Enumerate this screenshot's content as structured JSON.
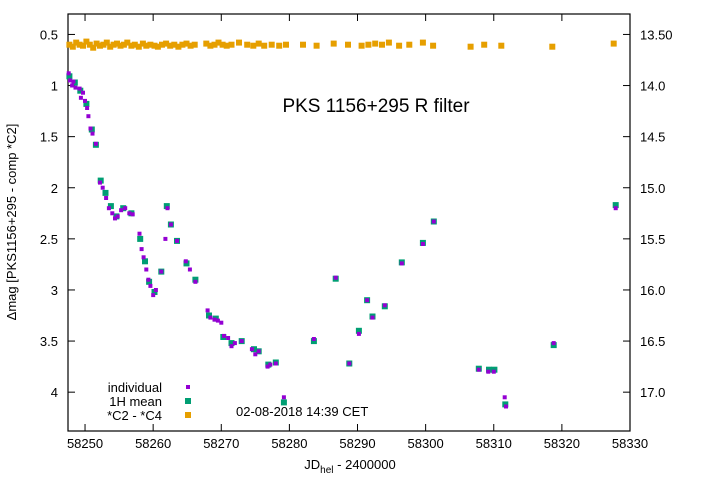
{
  "chart_data": {
    "type": "scatter",
    "title": "PKS 1156+295   R filter",
    "annotation": "02-08-2018  14:39 CET",
    "xlabel_main": "JD",
    "xlabel_sub": "hel",
    "xlabel_rest": " - 2400000",
    "ylabel": "Δmag [PKS1156+295 - comp *C2]",
    "x_range": [
      58247.5,
      58330
    ],
    "y_left_range": [
      0.3,
      4.38
    ],
    "y_left_inverted": true,
    "y_right_offset": 13.0,
    "x_ticks": [
      58250,
      58260,
      58270,
      58280,
      58290,
      58300,
      58310,
      58320,
      58330
    ],
    "x_tick_labels": [
      "58250",
      "58260",
      "58270",
      "58280",
      "58290",
      "58300",
      "58310",
      "58320",
      "58330"
    ],
    "y_left_ticks": [
      0.5,
      1,
      1.5,
      2,
      2.5,
      3,
      3.5,
      4
    ],
    "y_left_tick_labels": [
      "0.5",
      "1",
      "1.5",
      "2",
      "2.5",
      "3",
      "3.5",
      "4"
    ],
    "y_right_ticks": [
      13.5,
      14.0,
      14.5,
      15.0,
      15.5,
      16.0,
      16.5,
      17.0
    ],
    "y_right_tick_labels": [
      "13.50",
      "14.0",
      "14.5",
      "15.0",
      "15.5",
      "16.0",
      "16.5",
      "17.0"
    ],
    "grid": false,
    "legend_position": "bottom-left",
    "series": [
      {
        "name": "individual",
        "color": "#9400d3",
        "points": [
          [
            58247.6,
            0.88
          ],
          [
            58247.8,
            0.95
          ],
          [
            58248.1,
            1.0
          ],
          [
            58248.3,
            0.96
          ],
          [
            58248.6,
            1.02
          ],
          [
            58249.2,
            1.03
          ],
          [
            58249.4,
            1.12
          ],
          [
            58249.7,
            1.07
          ],
          [
            58250.0,
            1.15
          ],
          [
            58250.3,
            1.22
          ],
          [
            58250.5,
            1.3
          ],
          [
            58250.8,
            1.42
          ],
          [
            58251.1,
            1.47
          ],
          [
            58251.6,
            1.57
          ],
          [
            58252.2,
            1.95
          ],
          [
            58252.6,
            2.0
          ],
          [
            58253.1,
            2.1
          ],
          [
            58253.5,
            2.2
          ],
          [
            58254.0,
            2.25
          ],
          [
            58254.4,
            2.3
          ],
          [
            58254.8,
            2.28
          ],
          [
            58255.3,
            2.22
          ],
          [
            58255.9,
            2.2
          ],
          [
            58256.5,
            2.25
          ],
          [
            58257.0,
            2.26
          ],
          [
            58258.0,
            2.45
          ],
          [
            58258.3,
            2.6
          ],
          [
            58258.6,
            2.68
          ],
          [
            58259.0,
            2.8
          ],
          [
            58259.3,
            2.9
          ],
          [
            58259.6,
            2.96
          ],
          [
            58260.0,
            3.05
          ],
          [
            58260.4,
            3.0
          ],
          [
            58261.2,
            2.82
          ],
          [
            58261.8,
            2.5
          ],
          [
            58262.1,
            2.2
          ],
          [
            58262.6,
            2.36
          ],
          [
            58263.5,
            2.52
          ],
          [
            58264.8,
            2.72
          ],
          [
            58265.4,
            2.8
          ],
          [
            58266.2,
            2.92
          ],
          [
            58268.0,
            3.2
          ],
          [
            58268.4,
            3.27
          ],
          [
            58269.0,
            3.29
          ],
          [
            58269.5,
            3.3
          ],
          [
            58270.0,
            3.32
          ],
          [
            58270.4,
            3.45
          ],
          [
            58271.0,
            3.47
          ],
          [
            58271.5,
            3.55
          ],
          [
            58272.0,
            3.52
          ],
          [
            58273.0,
            3.5
          ],
          [
            58274.5,
            3.58
          ],
          [
            58275.0,
            3.63
          ],
          [
            58275.5,
            3.6
          ],
          [
            58276.8,
            3.75
          ],
          [
            58277.2,
            3.73
          ],
          [
            58278.0,
            3.72
          ],
          [
            58279.2,
            4.05
          ],
          [
            58283.6,
            3.48
          ],
          [
            58286.8,
            2.88
          ],
          [
            58288.8,
            3.72
          ],
          [
            58290.2,
            3.43
          ],
          [
            58291.4,
            3.1
          ],
          [
            58292.2,
            3.27
          ],
          [
            58294.0,
            3.15
          ],
          [
            58296.5,
            2.74
          ],
          [
            58299.6,
            2.55
          ],
          [
            58301.2,
            2.33
          ],
          [
            58307.8,
            3.78
          ],
          [
            58309.2,
            3.8
          ],
          [
            58310.0,
            3.8
          ],
          [
            58311.6,
            4.05
          ],
          [
            58311.8,
            4.14
          ],
          [
            58318.8,
            3.52
          ],
          [
            58327.9,
            2.2
          ]
        ]
      },
      {
        "name": "1H mean",
        "color": "#009e73",
        "points": [
          [
            58247.7,
            0.91
          ],
          [
            58248.5,
            0.97
          ],
          [
            58249.3,
            1.05
          ],
          [
            58250.2,
            1.18
          ],
          [
            58251.0,
            1.43
          ],
          [
            58251.6,
            1.58
          ],
          [
            58252.3,
            1.93
          ],
          [
            58253.0,
            2.05
          ],
          [
            58253.8,
            2.18
          ],
          [
            58254.6,
            2.28
          ],
          [
            58255.6,
            2.2
          ],
          [
            58256.8,
            2.25
          ],
          [
            58258.1,
            2.5
          ],
          [
            58258.8,
            2.72
          ],
          [
            58259.4,
            2.92
          ],
          [
            58260.2,
            3.02
          ],
          [
            58261.2,
            2.82
          ],
          [
            58262.0,
            2.18
          ],
          [
            58262.6,
            2.36
          ],
          [
            58263.5,
            2.52
          ],
          [
            58264.9,
            2.74
          ],
          [
            58266.2,
            2.9
          ],
          [
            58268.2,
            3.25
          ],
          [
            58269.2,
            3.28
          ],
          [
            58270.3,
            3.46
          ],
          [
            58271.5,
            3.52
          ],
          [
            58273.0,
            3.5
          ],
          [
            58274.8,
            3.58
          ],
          [
            58275.5,
            3.6
          ],
          [
            58276.9,
            3.73
          ],
          [
            58278.0,
            3.71
          ],
          [
            58279.2,
            4.1
          ],
          [
            58283.6,
            3.5
          ],
          [
            58286.8,
            2.89
          ],
          [
            58288.8,
            3.72
          ],
          [
            58290.2,
            3.4
          ],
          [
            58291.4,
            3.1
          ],
          [
            58292.2,
            3.26
          ],
          [
            58294.0,
            3.16
          ],
          [
            58296.5,
            2.73
          ],
          [
            58299.6,
            2.54
          ],
          [
            58301.2,
            2.33
          ],
          [
            58307.8,
            3.77
          ],
          [
            58309.3,
            3.78
          ],
          [
            58310.1,
            3.78
          ],
          [
            58311.7,
            4.12
          ],
          [
            58318.8,
            3.54
          ],
          [
            58327.9,
            2.17
          ]
        ]
      },
      {
        "name": "*C2 - *C4",
        "color": "#e69f00",
        "points": [
          [
            58247.7,
            0.6
          ],
          [
            58248.2,
            0.62
          ],
          [
            58248.7,
            0.58
          ],
          [
            58249.2,
            0.6
          ],
          [
            58249.7,
            0.61
          ],
          [
            58250.2,
            0.57
          ],
          [
            58250.7,
            0.6
          ],
          [
            58251.2,
            0.63
          ],
          [
            58251.7,
            0.59
          ],
          [
            58252.2,
            0.61
          ],
          [
            58252.7,
            0.6
          ],
          [
            58253.2,
            0.58
          ],
          [
            58253.7,
            0.62
          ],
          [
            58254.2,
            0.6
          ],
          [
            58254.7,
            0.59
          ],
          [
            58255.2,
            0.61
          ],
          [
            58255.7,
            0.6
          ],
          [
            58256.2,
            0.58
          ],
          [
            58256.8,
            0.61
          ],
          [
            58257.3,
            0.6
          ],
          [
            58257.9,
            0.62
          ],
          [
            58258.5,
            0.59
          ],
          [
            58259.0,
            0.61
          ],
          [
            58259.6,
            0.6
          ],
          [
            58260.2,
            0.61
          ],
          [
            58260.7,
            0.62
          ],
          [
            58261.3,
            0.6
          ],
          [
            58261.9,
            0.59
          ],
          [
            58262.5,
            0.61
          ],
          [
            58263.1,
            0.6
          ],
          [
            58263.7,
            0.62
          ],
          [
            58264.3,
            0.6
          ],
          [
            58264.9,
            0.59
          ],
          [
            58265.5,
            0.61
          ],
          [
            58266.1,
            0.6
          ],
          [
            58267.8,
            0.59
          ],
          [
            58268.4,
            0.61
          ],
          [
            58269.0,
            0.6
          ],
          [
            58269.6,
            0.58
          ],
          [
            58270.2,
            0.6
          ],
          [
            58270.8,
            0.61
          ],
          [
            58271.5,
            0.6
          ],
          [
            58272.6,
            0.58
          ],
          [
            58273.8,
            0.6
          ],
          [
            58274.7,
            0.61
          ],
          [
            58275.5,
            0.59
          ],
          [
            58276.3,
            0.61
          ],
          [
            58277.4,
            0.6
          ],
          [
            58278.5,
            0.61
          ],
          [
            58279.5,
            0.6
          ],
          [
            58282.0,
            0.6
          ],
          [
            58284.0,
            0.61
          ],
          [
            58286.5,
            0.59
          ],
          [
            58288.6,
            0.6
          ],
          [
            58290.6,
            0.61
          ],
          [
            58291.6,
            0.6
          ],
          [
            58292.6,
            0.59
          ],
          [
            58293.6,
            0.6
          ],
          [
            58294.6,
            0.58
          ],
          [
            58296.1,
            0.61
          ],
          [
            58297.6,
            0.6
          ],
          [
            58299.6,
            0.58
          ],
          [
            58301.1,
            0.61
          ],
          [
            58306.6,
            0.62
          ],
          [
            58308.6,
            0.6
          ],
          [
            58311.1,
            0.61
          ],
          [
            58318.6,
            0.62
          ],
          [
            58327.6,
            0.59
          ]
        ]
      }
    ]
  }
}
